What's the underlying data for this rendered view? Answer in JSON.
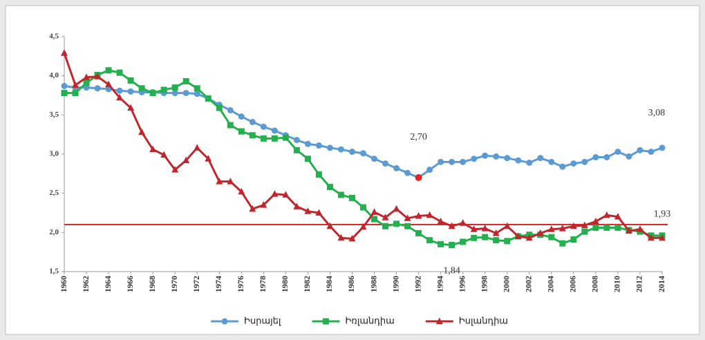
{
  "chart_data": {
    "type": "line",
    "x": [
      1960,
      1961,
      1962,
      1963,
      1964,
      1965,
      1966,
      1967,
      1968,
      1969,
      1970,
      1971,
      1972,
      1973,
      1974,
      1975,
      1976,
      1977,
      1978,
      1979,
      1980,
      1981,
      1982,
      1983,
      1984,
      1985,
      1986,
      1987,
      1988,
      1989,
      1990,
      1991,
      1992,
      1993,
      1994,
      1995,
      1996,
      1997,
      1998,
      1999,
      2000,
      2001,
      2002,
      2003,
      2004,
      2005,
      2006,
      2007,
      2008,
      2009,
      2010,
      2011,
      2012,
      2013,
      2014
    ],
    "xlim": [
      1960,
      2014
    ],
    "xticks": [
      1960,
      1962,
      1964,
      1966,
      1968,
      1970,
      1972,
      1974,
      1976,
      1978,
      1980,
      1982,
      1984,
      1986,
      1988,
      1990,
      1992,
      1994,
      1996,
      1998,
      2000,
      2002,
      2004,
      2006,
      2008,
      2010,
      2012,
      2014
    ],
    "ylim": [
      1.5,
      4.5
    ],
    "yticks": [
      {
        "value": 1.5,
        "label": "1,5"
      },
      {
        "value": 2.0,
        "label": "2,0"
      },
      {
        "value": 2.5,
        "label": "2,5"
      },
      {
        "value": 3.0,
        "label": "3,0"
      },
      {
        "value": 3.5,
        "label": "3,5"
      },
      {
        "value": 4.0,
        "label": "4,0"
      },
      {
        "value": 4.5,
        "label": "4,5"
      }
    ],
    "series": [
      {
        "name": "Իսրայել",
        "color": "#5b9bd5",
        "marker": "circle",
        "values": [
          3.87,
          3.85,
          3.85,
          3.84,
          3.83,
          3.81,
          3.8,
          3.79,
          3.79,
          3.78,
          3.78,
          3.78,
          3.77,
          3.71,
          3.63,
          3.56,
          3.48,
          3.41,
          3.35,
          3.3,
          3.24,
          3.18,
          3.13,
          3.11,
          3.08,
          3.06,
          3.03,
          3.01,
          2.94,
          2.88,
          2.82,
          2.76,
          2.7,
          2.8,
          2.9,
          2.9,
          2.9,
          2.94,
          2.98,
          2.97,
          2.95,
          2.92,
          2.89,
          2.95,
          2.9,
          2.84,
          2.88,
          2.9,
          2.96,
          2.96,
          3.03,
          2.97,
          3.05,
          3.03,
          3.08
        ]
      },
      {
        "name": "Իռլանդիա",
        "color": "#22b14c",
        "marker": "square",
        "values": [
          3.78,
          3.78,
          3.91,
          4.01,
          4.07,
          4.04,
          3.94,
          3.84,
          3.78,
          3.82,
          3.85,
          3.93,
          3.84,
          3.71,
          3.59,
          3.37,
          3.29,
          3.24,
          3.2,
          3.2,
          3.21,
          3.05,
          2.94,
          2.74,
          2.58,
          2.48,
          2.44,
          2.32,
          2.17,
          2.08,
          2.11,
          2.08,
          1.99,
          1.9,
          1.85,
          1.84,
          1.88,
          1.93,
          1.94,
          1.9,
          1.89,
          1.95,
          1.97,
          1.97,
          1.94,
          1.86,
          1.91,
          2.01,
          2.06,
          2.06,
          2.06,
          2.03,
          2.01,
          1.96,
          1.96
        ]
      },
      {
        "name": "Իսլանդիա",
        "color": "#c0272d",
        "marker": "triangle",
        "values": [
          4.29,
          3.88,
          3.98,
          3.99,
          3.89,
          3.72,
          3.59,
          3.28,
          3.06,
          2.99,
          2.8,
          2.92,
          3.08,
          2.94,
          2.65,
          2.65,
          2.52,
          2.3,
          2.35,
          2.49,
          2.48,
          2.33,
          2.27,
          2.25,
          2.08,
          1.93,
          1.92,
          2.07,
          2.26,
          2.19,
          2.3,
          2.18,
          2.21,
          2.22,
          2.14,
          2.08,
          2.12,
          2.04,
          2.05,
          1.99,
          2.08,
          1.95,
          1.93,
          1.99,
          2.04,
          2.05,
          2.08,
          2.09,
          2.14,
          2.22,
          2.2,
          2.02,
          2.04,
          1.93,
          1.93
        ]
      }
    ],
    "reference_line": {
      "value": 2.1,
      "color": "#e0262b"
    },
    "annotations": [
      {
        "text": "2,70",
        "x": 1992,
        "value": 2.7,
        "color": "#e52222"
      },
      {
        "text": "3,08",
        "x": 2014,
        "value": 3.08
      },
      {
        "text": "1,93",
        "x": 2014,
        "value": 1.93
      },
      {
        "text": "1,84",
        "x": 1995,
        "value": 1.84
      }
    ],
    "legend": "bottom"
  }
}
